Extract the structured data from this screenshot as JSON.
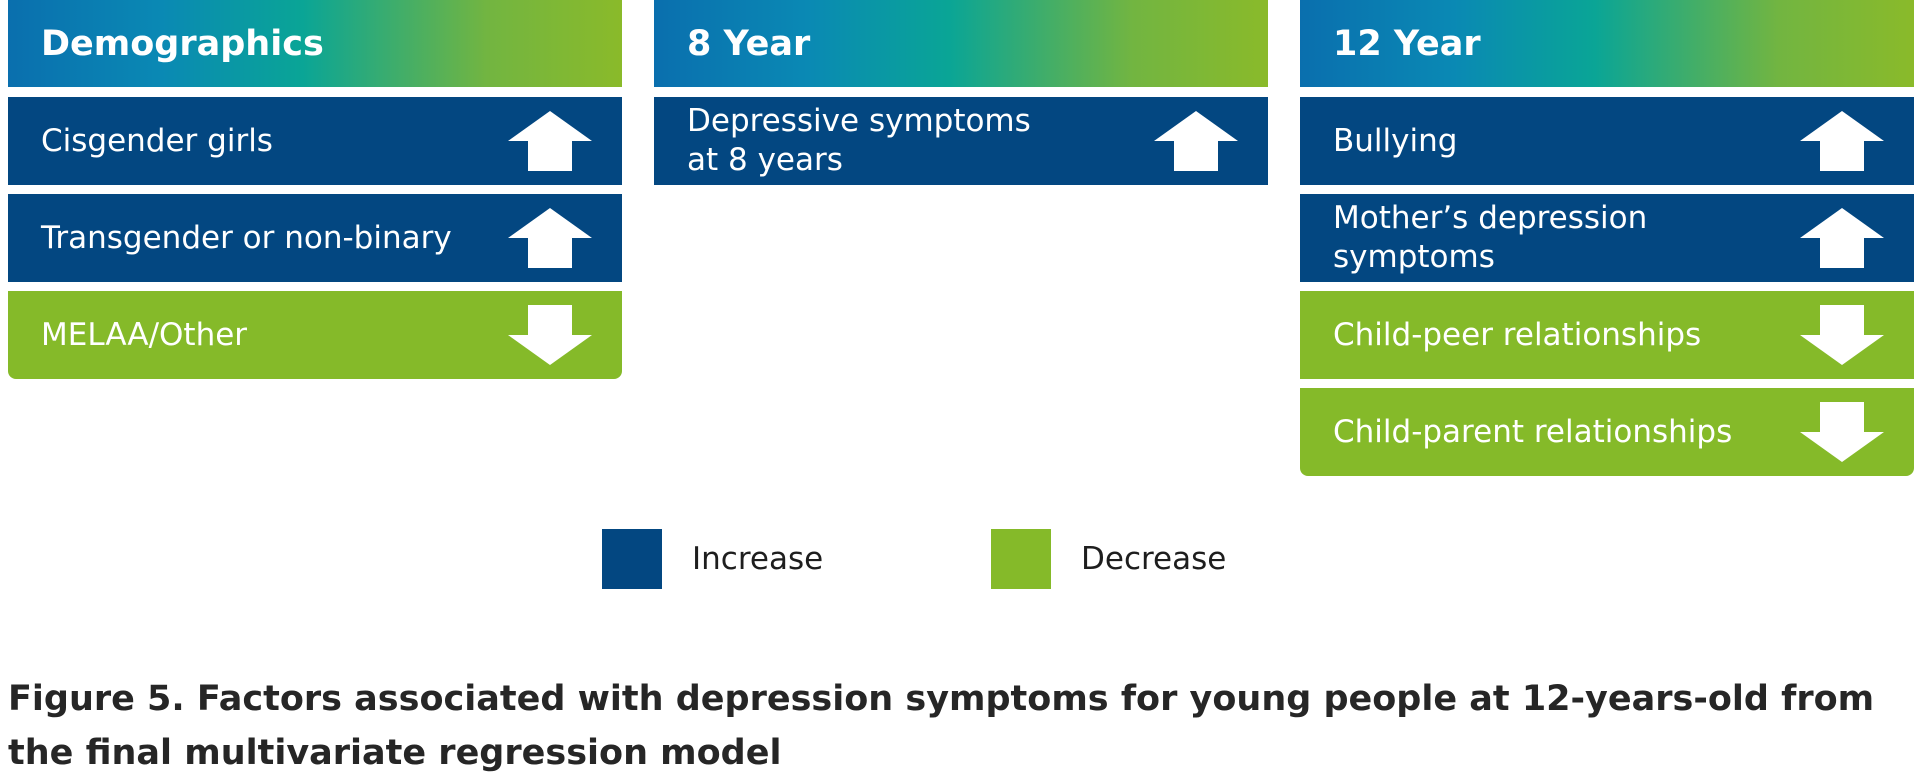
{
  "colors": {
    "increase": "#034781",
    "decrease": "#85ba29",
    "header_gradient": [
      "#0a6fae",
      "#0aa596",
      "#8aba2a"
    ],
    "arrow": "#ffffff"
  },
  "columns": [
    {
      "header": "Demographics",
      "factors": [
        {
          "label": "Cisgender girls",
          "direction": "increase",
          "icon": "arrow-up-icon"
        },
        {
          "label": "Transgender or non-binary",
          "direction": "increase",
          "icon": "arrow-up-icon"
        },
        {
          "label": "MELAA/Other",
          "direction": "decrease",
          "icon": "arrow-down-icon"
        }
      ]
    },
    {
      "header": "8 Year",
      "factors": [
        {
          "label": "Depressive symptoms\nat 8 years",
          "direction": "increase",
          "icon": "arrow-up-icon"
        }
      ]
    },
    {
      "header": "12 Year",
      "factors": [
        {
          "label": "Bullying",
          "direction": "increase",
          "icon": "arrow-up-icon"
        },
        {
          "label": "Mother’s depression\nsymptoms",
          "direction": "increase",
          "icon": "arrow-up-icon"
        },
        {
          "label": "Child-peer relationships",
          "direction": "decrease",
          "icon": "arrow-down-icon"
        },
        {
          "label": "Child-parent relationships",
          "direction": "decrease",
          "icon": "arrow-down-icon"
        }
      ]
    }
  ],
  "legend": {
    "increase_label": "Increase",
    "decrease_label": "Decrease"
  },
  "caption": "Figure 5. Factors associated with depression symptoms for young people at 12-years-old from the final multivariate regression model"
}
